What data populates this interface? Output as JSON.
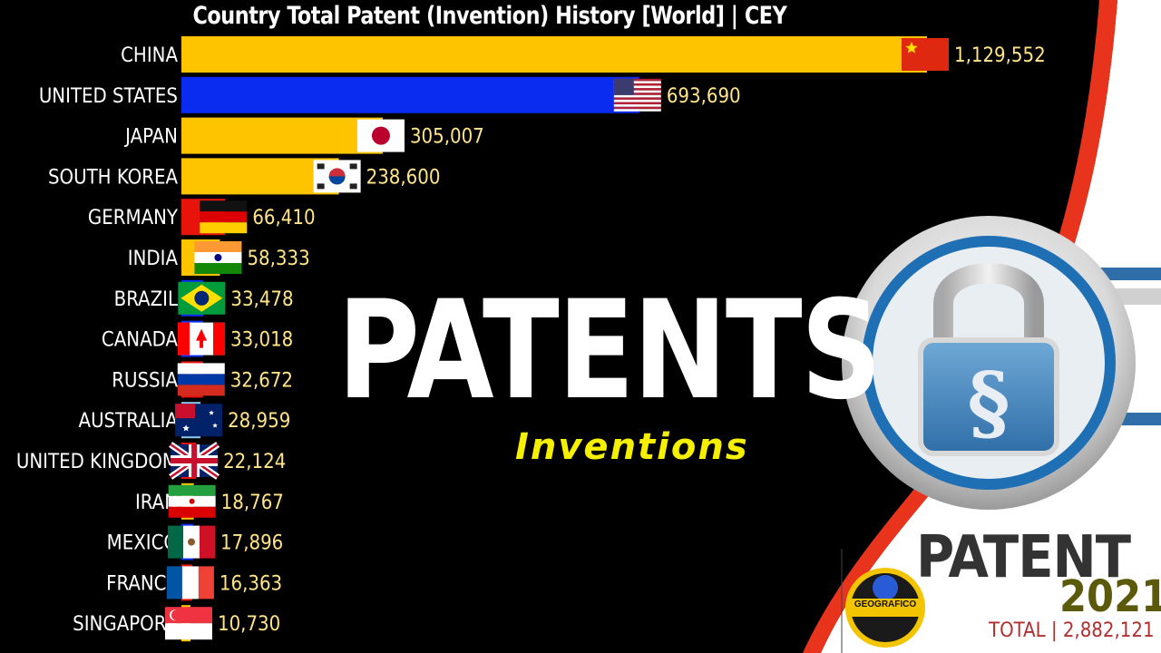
{
  "header": {
    "title": "Country Total Patent (Invention) History [World] | CEY"
  },
  "overlay": {
    "headline": "PATENTS",
    "subheadline": "Inventions",
    "badge_word": "PATENT",
    "year": "2021",
    "total": "TOTAL | 2,882,121",
    "logo_text": "GEOGRAFICO"
  },
  "colors": {
    "background": "#000000",
    "yellow_bar": "#ffc400",
    "blue_bar": "#0a2cf0",
    "red_bar": "#e8140c",
    "lightblue_bar": "#8ccbf0",
    "value_text": "#ffe48a",
    "accent_red": "#e8341c"
  },
  "chart_data": {
    "type": "bar",
    "orientation": "horizontal",
    "title": "Country Total Patent (Invention) History [World] | CEY",
    "categories": [
      "CHINA",
      "UNITED STATES",
      "JAPAN",
      "SOUTH KOREA",
      "GERMANY",
      "INDIA",
      "BRAZIL",
      "CANADA",
      "RUSSIA",
      "AUSTRALIA",
      "UNITED KINGDOM",
      "IRAN",
      "MEXICO",
      "FRANCE",
      "SINGAPORE"
    ],
    "values": [
      1129552,
      693690,
      305007,
      238600,
      66410,
      58333,
      33478,
      33018,
      32672,
      28959,
      22124,
      18767,
      17896,
      16363,
      10730
    ],
    "value_labels": [
      "1,129,552",
      "693,690",
      "305,007",
      "238,600",
      "66,410",
      "58,333",
      "33,478",
      "33,018",
      "32,672",
      "28,959",
      "22,124",
      "18,767",
      "17,896",
      "16,363",
      "10,730"
    ],
    "bar_colors": [
      "#ffc400",
      "#0a2cf0",
      "#ffc400",
      "#ffc400",
      "#e8140c",
      "#ffc400",
      "#0a2cf0",
      "#0a2cf0",
      "#e8140c",
      "#8ccbf0",
      "#e8140c",
      "#ffc400",
      "#0a2cf0",
      "#e8140c",
      "#ffc400"
    ],
    "flags": [
      "china-flag",
      "usa-flag",
      "japan-flag",
      "south-korea-flag",
      "germany-flag",
      "india-flag",
      "brazil-flag",
      "canada-flag",
      "russia-flag",
      "australia-flag",
      "uk-flag",
      "iran-flag",
      "mexico-flag",
      "france-flag",
      "singapore-flag"
    ],
    "year": "2021",
    "total": "TOTAL | 2,882,121",
    "xlim": [
      0,
      1129552
    ],
    "grid": false,
    "legend": "none"
  }
}
